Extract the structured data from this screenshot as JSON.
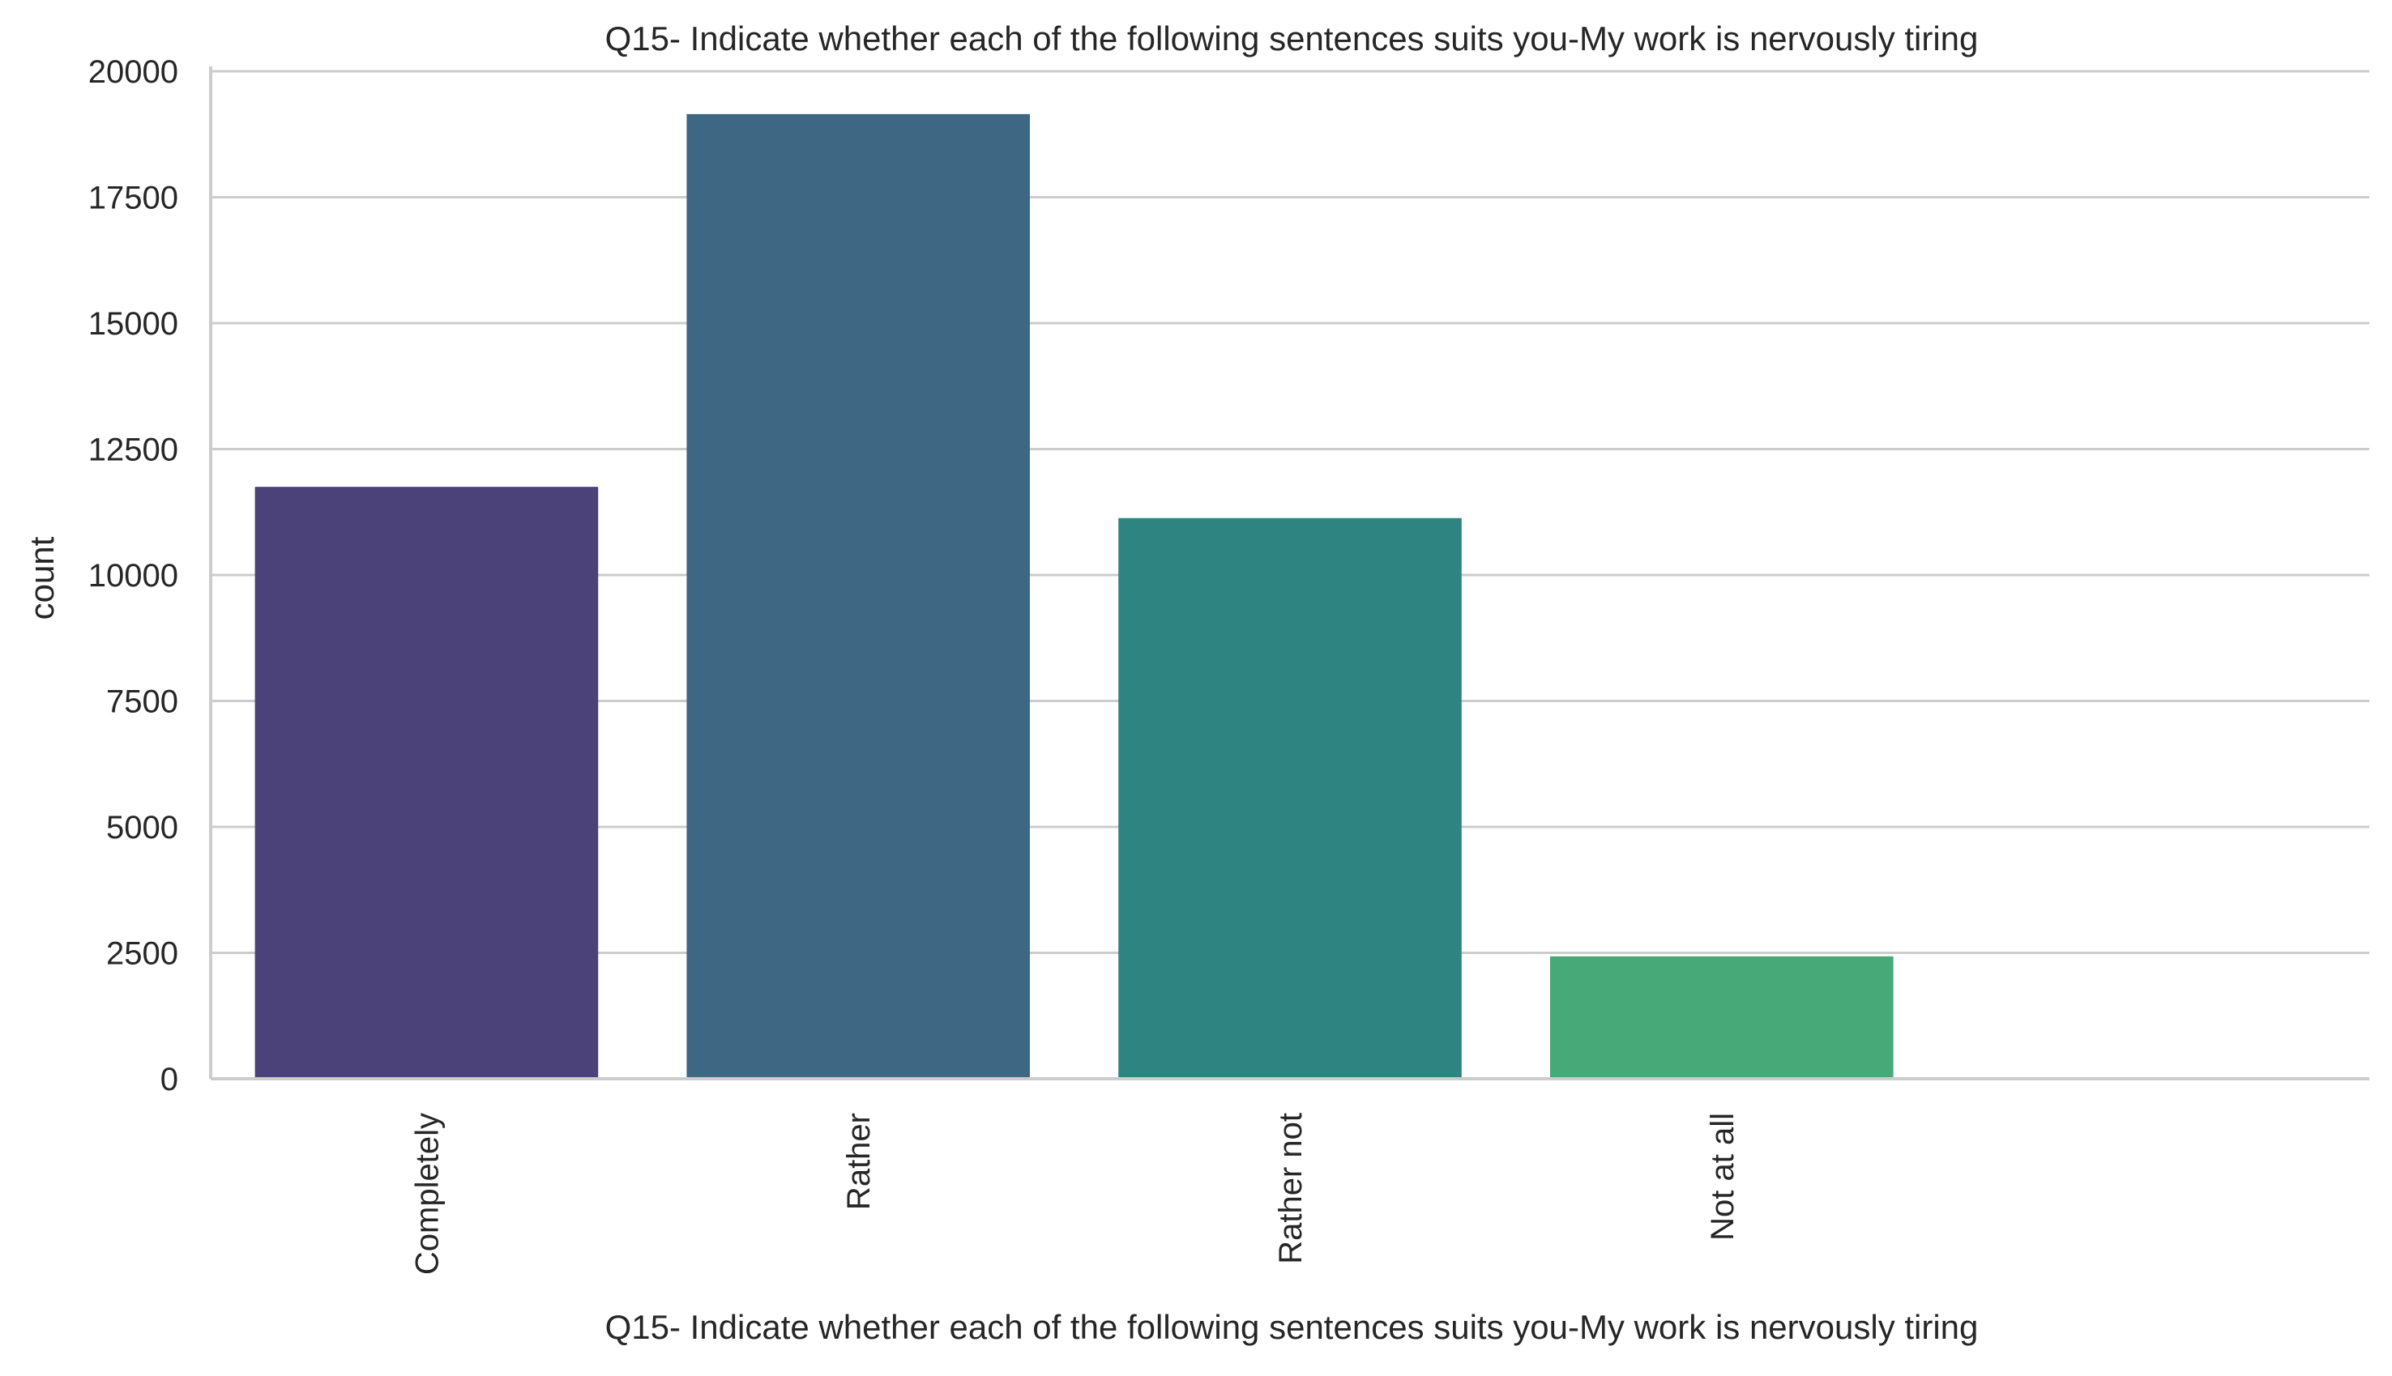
{
  "chart_data": {
    "type": "bar",
    "title": "Q15- Indicate whether each of the following sentences suits you-My work is nervously tiring",
    "xlabel": "Q15- Indicate whether each of the following sentences suits you-My work is nervously tiring",
    "ylabel": "count",
    "categories": [
      "Completely",
      "Rather",
      "Rather not",
      "Not at all"
    ],
    "values": [
      11750,
      19150,
      11130,
      2430
    ],
    "colors": [
      "#4a4278",
      "#3e6784",
      "#2e8480",
      "#47a878"
    ],
    "ylim": [
      0,
      20000
    ],
    "yticks": [
      "0",
      "2500",
      "5000",
      "7500",
      "10000",
      "12500",
      "15000",
      "17500",
      "20000"
    ],
    "grid": "horizontal",
    "x_slots": 5
  }
}
